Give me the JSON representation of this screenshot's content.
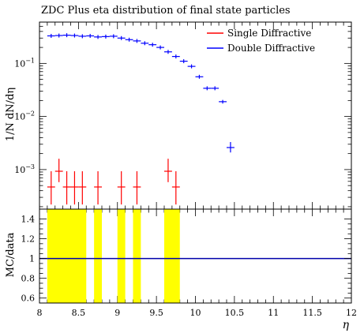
{
  "chart_data": [
    {
      "type": "scatter",
      "title": "ZDC Plus eta distribution of final state particles",
      "ylabel": "1/N dN/dη",
      "xlabel": "η",
      "x_range": [
        8,
        12
      ],
      "y_scale": "log",
      "y_range": [
        0.00018,
        0.6
      ],
      "y_ticks": [
        {
          "value": 0.001,
          "base": "10",
          "exp": "−3"
        },
        {
          "value": 0.01,
          "base": "10",
          "exp": "−2"
        },
        {
          "value": 0.1,
          "base": "10",
          "exp": "−1"
        }
      ],
      "legend_position": "top-right",
      "series": [
        {
          "name": "Single Diffractive",
          "color": "#ff0000",
          "points": [
            {
              "x": 8.15,
              "xerr": 0.05,
              "y": 0.00047,
              "ylo": 0.00022,
              "yhi": 0.00093
            },
            {
              "x": 8.25,
              "xerr": 0.05,
              "y": 0.00093,
              "ylo": 0.00058,
              "yhi": 0.0016
            },
            {
              "x": 8.35,
              "xerr": 0.05,
              "y": 0.00047,
              "ylo": 0.00022,
              "yhi": 0.00093
            },
            {
              "x": 8.45,
              "xerr": 0.05,
              "y": 0.00047,
              "ylo": 0.00022,
              "yhi": 0.00093
            },
            {
              "x": 8.55,
              "xerr": 0.05,
              "y": 0.00047,
              "ylo": 0.00022,
              "yhi": 0.00093
            },
            {
              "x": 8.75,
              "xerr": 0.05,
              "y": 0.00047,
              "ylo": 0.00022,
              "yhi": 0.00093
            },
            {
              "x": 9.05,
              "xerr": 0.05,
              "y": 0.00047,
              "ylo": 0.00022,
              "yhi": 0.00093
            },
            {
              "x": 9.25,
              "xerr": 0.05,
              "y": 0.00047,
              "ylo": 0.00022,
              "yhi": 0.00093
            },
            {
              "x": 9.65,
              "xerr": 0.05,
              "y": 0.00093,
              "ylo": 0.00058,
              "yhi": 0.0016
            },
            {
              "x": 9.75,
              "xerr": 0.05,
              "y": 0.00047,
              "ylo": 0.00022,
              "yhi": 0.00093
            }
          ]
        },
        {
          "name": "Double Diffractive",
          "color": "#0000ff",
          "points": [
            {
              "x": 8.15,
              "xerr": 0.05,
              "y": 0.33
            },
            {
              "x": 8.25,
              "xerr": 0.05,
              "y": 0.335
            },
            {
              "x": 8.35,
              "xerr": 0.05,
              "y": 0.34
            },
            {
              "x": 8.45,
              "xerr": 0.05,
              "y": 0.335
            },
            {
              "x": 8.55,
              "xerr": 0.05,
              "y": 0.325
            },
            {
              "x": 8.65,
              "xerr": 0.05,
              "y": 0.33
            },
            {
              "x": 8.75,
              "xerr": 0.05,
              "y": 0.315
            },
            {
              "x": 8.85,
              "xerr": 0.05,
              "y": 0.32
            },
            {
              "x": 8.95,
              "xerr": 0.05,
              "y": 0.325
            },
            {
              "x": 9.05,
              "xerr": 0.05,
              "y": 0.3
            },
            {
              "x": 9.15,
              "xerr": 0.05,
              "y": 0.28
            },
            {
              "x": 9.25,
              "xerr": 0.05,
              "y": 0.265
            },
            {
              "x": 9.35,
              "xerr": 0.05,
              "y": 0.24
            },
            {
              "x": 9.45,
              "xerr": 0.05,
              "y": 0.225
            },
            {
              "x": 9.55,
              "xerr": 0.05,
              "y": 0.2
            },
            {
              "x": 9.65,
              "xerr": 0.05,
              "y": 0.165
            },
            {
              "x": 9.75,
              "xerr": 0.05,
              "y": 0.135
            },
            {
              "x": 9.85,
              "xerr": 0.05,
              "y": 0.11
            },
            {
              "x": 9.95,
              "xerr": 0.05,
              "y": 0.088
            },
            {
              "x": 10.05,
              "xerr": 0.05,
              "y": 0.056
            },
            {
              "x": 10.15,
              "xerr": 0.05,
              "y": 0.034
            },
            {
              "x": 10.25,
              "xerr": 0.05,
              "y": 0.034
            },
            {
              "x": 10.35,
              "xerr": 0.05,
              "y": 0.019,
              "ylo": 0.0175,
              "yhi": 0.0205
            },
            {
              "x": 10.45,
              "xerr": 0.05,
              "y": 0.0026,
              "ylo": 0.0021,
              "yhi": 0.0033
            }
          ]
        }
      ]
    },
    {
      "type": "scatter",
      "ylabel": "MC/data",
      "xlabel": "η",
      "x_range": [
        8,
        12
      ],
      "y_range": [
        0.55,
        1.5
      ],
      "x_ticks": [
        "8",
        "8.5",
        "9",
        "9.5",
        "10",
        "10.5",
        "11",
        "11.5",
        "12"
      ],
      "y_ticks": [
        "0.6",
        "0.8",
        "1",
        "1.2",
        "1.4"
      ],
      "reference_line": {
        "y": 1,
        "color": "#0000aa"
      },
      "band_color": "#ffff00",
      "bands": [
        {
          "x0": 8.1,
          "x1": 8.6
        },
        {
          "x0": 8.7,
          "x1": 8.8
        },
        {
          "x0": 9.0,
          "x1": 9.1
        },
        {
          "x0": 9.2,
          "x1": 9.3
        },
        {
          "x0": 9.6,
          "x1": 9.8
        }
      ]
    }
  ]
}
